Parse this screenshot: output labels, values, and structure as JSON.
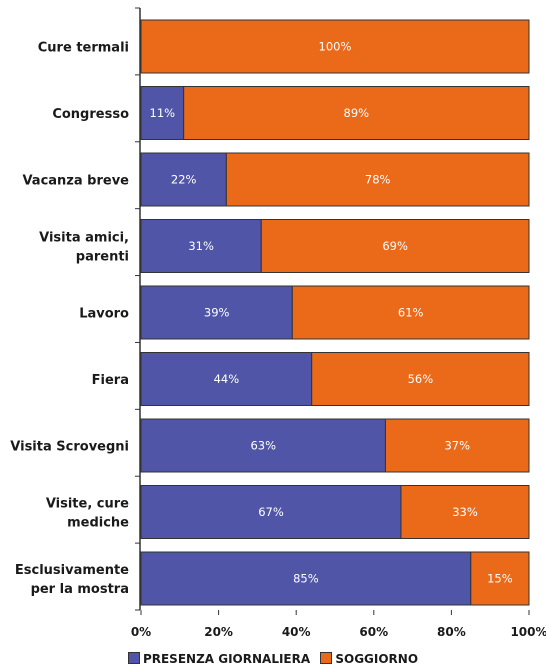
{
  "chart_data": {
    "type": "bar",
    "orientation": "horizontal",
    "stacked": true,
    "categories": [
      [
        "Cure termali"
      ],
      [
        "Congresso"
      ],
      [
        "Vacanza breve"
      ],
      [
        "Visita amici,",
        "parenti"
      ],
      [
        "Lavoro"
      ],
      [
        "Fiera"
      ],
      [
        "Visita Scrovegni"
      ],
      [
        "Visite, cure",
        "mediche"
      ],
      [
        "Esclusivamente",
        "per la mostra"
      ]
    ],
    "series": [
      {
        "name": "PRESENZA GIORNALIERA",
        "color": "#5055a8",
        "values": [
          0,
          11,
          22,
          31,
          39,
          44,
          63,
          67,
          85
        ]
      },
      {
        "name": "SOGGIORNO",
        "color": "#ea6a1a",
        "values": [
          100,
          89,
          78,
          69,
          61,
          56,
          37,
          33,
          15
        ]
      }
    ],
    "xticks": [
      "0%",
      "20%",
      "40%",
      "60%",
      "80%",
      "100%"
    ],
    "xlim": [
      0,
      100
    ],
    "grid": false,
    "legend": "bottom"
  }
}
